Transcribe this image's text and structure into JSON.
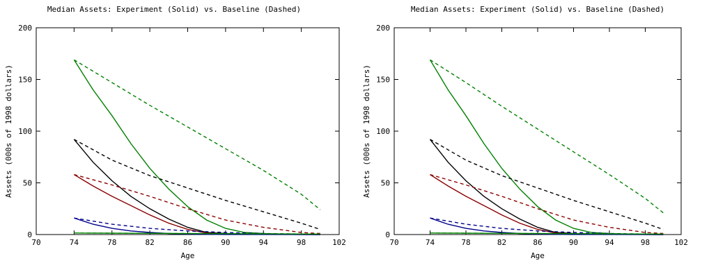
{
  "chart_data": [
    {
      "type": "line",
      "title": "Median Assets:  Experiment (Solid) vs. Baseline (Dashed)",
      "xlabel": "Age",
      "ylabel": "Assets (000s of 1998 dollars)",
      "xlim": [
        70,
        102
      ],
      "ylim": [
        0,
        200
      ],
      "xticks": [
        70,
        74,
        78,
        82,
        86,
        90,
        94,
        98,
        102
      ],
      "yticks": [
        0,
        50,
        100,
        150,
        200
      ],
      "grid": false,
      "series": [
        {
          "style": "dashed",
          "color": "#008000",
          "x": [
            74,
            78,
            82,
            86,
            90,
            94,
            98,
            100
          ],
          "y": [
            169,
            147,
            125,
            104,
            83,
            62,
            39,
            24
          ]
        },
        {
          "style": "solid",
          "color": "#008000",
          "x": [
            74,
            76,
            78,
            80,
            82,
            84,
            86,
            88,
            90,
            92,
            94,
            96,
            98,
            100
          ],
          "y": [
            169,
            140,
            115,
            88,
            64,
            44,
            27,
            14,
            6,
            2,
            1,
            0.5,
            0.3,
            0.2
          ]
        },
        {
          "style": "dashed",
          "color": "#000000",
          "x": [
            74,
            78,
            82,
            86,
            90,
            94,
            98,
            100
          ],
          "y": [
            92,
            72,
            57,
            45,
            33,
            22,
            11,
            5
          ]
        },
        {
          "style": "solid",
          "color": "#000000",
          "x": [
            74,
            76,
            78,
            80,
            82,
            84,
            86,
            88,
            90,
            92,
            100
          ],
          "y": [
            92,
            70,
            52,
            37,
            25,
            15,
            7,
            2,
            1,
            0.5,
            0
          ]
        },
        {
          "style": "dashed",
          "color": "#8b0000",
          "x": [
            74,
            78,
            82,
            86,
            90,
            94,
            98,
            100
          ],
          "y": [
            58,
            48,
            37,
            25,
            14,
            7,
            2,
            1
          ]
        },
        {
          "style": "solid",
          "color": "#8b0000",
          "x": [
            74,
            76,
            78,
            80,
            82,
            84,
            86,
            88,
            90,
            100
          ],
          "y": [
            58,
            47,
            37,
            28,
            19,
            11,
            5,
            1.5,
            0.5,
            0
          ]
        },
        {
          "style": "dashed",
          "color": "#00008b",
          "x": [
            74,
            78,
            82,
            86,
            90,
            94,
            98,
            100
          ],
          "y": [
            16,
            10,
            6,
            3.5,
            2,
            1,
            0.5,
            0.3
          ]
        },
        {
          "style": "solid",
          "color": "#00008b",
          "x": [
            74,
            76,
            78,
            80,
            82,
            84,
            86,
            88,
            90,
            100
          ],
          "y": [
            16,
            10,
            6,
            3.5,
            2,
            1,
            0.5,
            0.2,
            0.1,
            0
          ]
        },
        {
          "style": "dashed",
          "color": "#008000",
          "x": [
            74,
            100
          ],
          "y": [
            1.5,
            0.5
          ]
        },
        {
          "style": "solid",
          "color": "#008000",
          "x": [
            74,
            100
          ],
          "y": [
            1.5,
            0.5
          ]
        }
      ]
    },
    {
      "type": "line",
      "title": "Median Assets:  Experiment (Solid) vs. Baseline (Dashed)",
      "xlabel": "Age",
      "ylabel": "Assets (000s of 1998 dollars)",
      "xlim": [
        70,
        102
      ],
      "ylim": [
        0,
        200
      ],
      "xticks": [
        70,
        74,
        78,
        82,
        86,
        90,
        94,
        98,
        102
      ],
      "yticks": [
        0,
        50,
        100,
        150,
        200
      ],
      "grid": false,
      "series": [
        {
          "style": "dashed",
          "color": "#008000",
          "x": [
            74,
            78,
            82,
            86,
            90,
            94,
            98,
            100
          ],
          "y": [
            169,
            147,
            124,
            102,
            80,
            58,
            35,
            21
          ]
        },
        {
          "style": "solid",
          "color": "#008000",
          "x": [
            74,
            76,
            78,
            80,
            82,
            84,
            86,
            88,
            90,
            92,
            94,
            96,
            98,
            100
          ],
          "y": [
            169,
            140,
            115,
            88,
            64,
            44,
            27,
            14,
            6,
            2,
            1,
            0.5,
            0.3,
            0.2
          ]
        },
        {
          "style": "dashed",
          "color": "#000000",
          "x": [
            74,
            78,
            82,
            86,
            90,
            94,
            98,
            100
          ],
          "y": [
            92,
            72,
            57,
            45,
            33,
            22,
            11,
            5
          ]
        },
        {
          "style": "solid",
          "color": "#000000",
          "x": [
            74,
            76,
            78,
            80,
            82,
            84,
            86,
            88,
            90,
            92,
            100
          ],
          "y": [
            92,
            70,
            52,
            37,
            25,
            15,
            7,
            2,
            1,
            0.5,
            0
          ]
        },
        {
          "style": "dashed",
          "color": "#8b0000",
          "x": [
            74,
            78,
            82,
            86,
            90,
            94,
            98,
            100
          ],
          "y": [
            58,
            48,
            37,
            25,
            14,
            7,
            2,
            1
          ]
        },
        {
          "style": "solid",
          "color": "#8b0000",
          "x": [
            74,
            76,
            78,
            80,
            82,
            84,
            86,
            88,
            90,
            100
          ],
          "y": [
            58,
            47,
            37,
            28,
            19,
            11,
            5,
            1.5,
            0.5,
            0
          ]
        },
        {
          "style": "dashed",
          "color": "#00008b",
          "x": [
            74,
            78,
            82,
            86,
            90,
            94,
            98,
            100
          ],
          "y": [
            16,
            10,
            6,
            3.5,
            2,
            1,
            0.5,
            0.3
          ]
        },
        {
          "style": "solid",
          "color": "#00008b",
          "x": [
            74,
            76,
            78,
            80,
            82,
            84,
            86,
            88,
            90,
            100
          ],
          "y": [
            16,
            10,
            6,
            3.5,
            2,
            1,
            0.5,
            0.2,
            0.1,
            0
          ]
        },
        {
          "style": "dashed",
          "color": "#008000",
          "x": [
            74,
            100
          ],
          "y": [
            1.5,
            0.5
          ]
        },
        {
          "style": "solid",
          "color": "#008000",
          "x": [
            74,
            100
          ],
          "y": [
            1.5,
            0.5
          ]
        }
      ]
    }
  ]
}
